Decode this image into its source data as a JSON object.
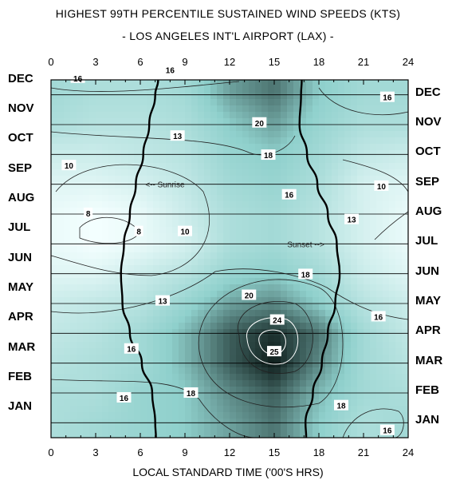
{
  "chart_data": {
    "type": "heatmap",
    "title": "HIGHEST 99TH PERCENTILE SUSTAINED WIND SPEEDS (KTS)",
    "subtitle": "- LOS ANGELES INT'L AIRPORT (LAX) -",
    "xlabel": "LOCAL STANDARD TIME ('00'S HRS)",
    "ylabel": "",
    "xlim": [
      0,
      24
    ],
    "x_ticks": [
      "0",
      "3",
      "6",
      "9",
      "12",
      "15",
      "18",
      "21",
      "24"
    ],
    "x_tick_values": [
      0,
      3,
      6,
      9,
      12,
      15,
      18,
      21,
      24
    ],
    "months": [
      "JAN",
      "FEB",
      "MAR",
      "APR",
      "MAY",
      "JUN",
      "JUL",
      "AUG",
      "SEP",
      "OCT",
      "NOV",
      "DEC"
    ],
    "colormap": {
      "low": "#f4ffff",
      "mid": "#8fd0cc",
      "high": "#0c1a18"
    },
    "grid": true,
    "sunrise": {
      "label": "<-- Sunrise",
      "hour_by_month": [
        7.0,
        6.8,
        6.1,
        5.3,
        4.8,
        4.7,
        4.9,
        5.3,
        5.7,
        6.2,
        6.6,
        7.0
      ]
    },
    "sunset": {
      "label": "Sunset -->",
      "hour_by_month": [
        17.1,
        17.6,
        18.2,
        18.6,
        19.1,
        19.4,
        19.2,
        18.6,
        17.9,
        17.2,
        16.7,
        16.8
      ]
    },
    "contour_labels": [
      {
        "text": "16",
        "hour": 1.8,
        "month": 11.56
      },
      {
        "text": "16",
        "hour": 8.0,
        "month": 11.84
      },
      {
        "text": "16",
        "hour": 22.6,
        "month": 10.92
      },
      {
        "text": "20",
        "hour": 14.0,
        "month": 10.06
      },
      {
        "text": "13",
        "hour": 8.5,
        "month": 9.62
      },
      {
        "text": "18",
        "hour": 14.6,
        "month": 8.98
      },
      {
        "text": "10",
        "hour": 1.2,
        "month": 8.63
      },
      {
        "text": "16",
        "hour": 16.0,
        "month": 7.65
      },
      {
        "text": "10",
        "hour": 22.2,
        "month": 7.94
      },
      {
        "text": "8",
        "hour": 2.5,
        "month": 7.03
      },
      {
        "text": "13",
        "hour": 20.2,
        "month": 6.82
      },
      {
        "text": "8",
        "hour": 5.9,
        "month": 6.42
      },
      {
        "text": "10",
        "hour": 9.0,
        "month": 6.42
      },
      {
        "text": "18",
        "hour": 17.1,
        "month": 4.98
      },
      {
        "text": "20",
        "hour": 13.3,
        "month": 4.28
      },
      {
        "text": "13",
        "hour": 7.5,
        "month": 4.09
      },
      {
        "text": "24",
        "hour": 15.2,
        "month": 3.45
      },
      {
        "text": "16",
        "hour": 22.0,
        "month": 3.56
      },
      {
        "text": "25",
        "hour": 15.0,
        "month": 2.39
      },
      {
        "text": "16",
        "hour": 5.4,
        "month": 2.48
      },
      {
        "text": "16",
        "hour": 4.9,
        "month": 0.84
      },
      {
        "text": "18",
        "hour": 9.4,
        "month": 1.0
      },
      {
        "text": "18",
        "hour": 19.5,
        "month": 0.58
      },
      {
        "text": "16",
        "hour": 22.6,
        "month": -0.25
      }
    ],
    "wind_field_kts": {
      "hours": [
        0,
        3,
        6,
        9,
        12,
        15,
        18,
        21,
        24
      ],
      "rows_by_month_jan_to_dec": [
        [
          15,
          16,
          17,
          18,
          20,
          22,
          18,
          15,
          16
        ],
        [
          15,
          15,
          17,
          18,
          21,
          23,
          19,
          16,
          15
        ],
        [
          14,
          15,
          16,
          19,
          23,
          26,
          21,
          16,
          14
        ],
        [
          13,
          14,
          16,
          19,
          23,
          25,
          22,
          16,
          13
        ],
        [
          12,
          13,
          14,
          17,
          20,
          21,
          18,
          14,
          12
        ],
        [
          10,
          10,
          12,
          14,
          17,
          18,
          16,
          12,
          10
        ],
        [
          9,
          8,
          9,
          11,
          15,
          16,
          14,
          11,
          9
        ],
        [
          9,
          8,
          9,
          12,
          15,
          16,
          14,
          11,
          9
        ],
        [
          10,
          10,
          11,
          13,
          16,
          17,
          15,
          11,
          10
        ],
        [
          12,
          12,
          13,
          14,
          17,
          18,
          16,
          13,
          12
        ],
        [
          15,
          14,
          14,
          15,
          18,
          20,
          17,
          15,
          15
        ],
        [
          16,
          15,
          15,
          16,
          20,
          22,
          18,
          16,
          16
        ]
      ]
    }
  }
}
